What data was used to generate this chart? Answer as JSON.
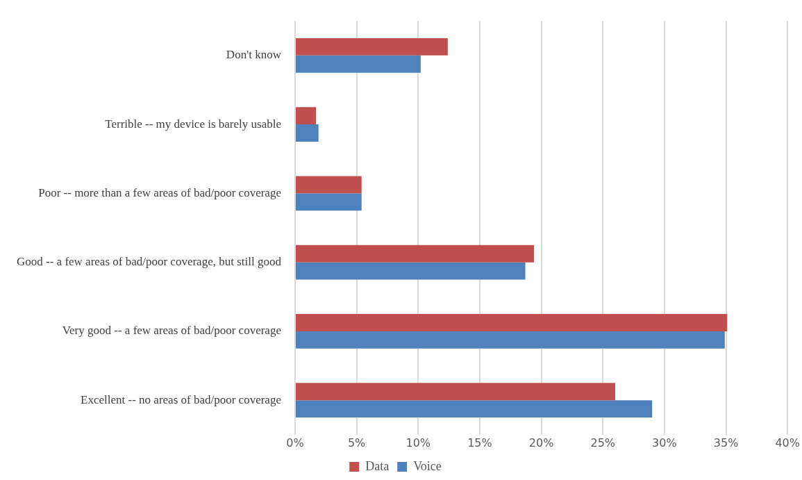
{
  "chart_data": {
    "type": "bar",
    "orientation": "horizontal",
    "categories": [
      "Don't know",
      "Terrible -- my device is barely usable",
      "Poor -- more than a few areas of bad/poor coverage",
      "Good -- a few areas of bad/poor coverage, but still good",
      "Very good -- a few areas of bad/poor coverage",
      "Excellent -- no areas of bad/poor coverage"
    ],
    "series": [
      {
        "name": "Data",
        "color": "#c0504d",
        "values": [
          12.4,
          1.7,
          5.4,
          19.4,
          35.1,
          26.0
        ]
      },
      {
        "name": "Voice",
        "color": "#4f81bd",
        "values": [
          10.2,
          1.9,
          5.4,
          18.7,
          34.9,
          29.0
        ]
      }
    ],
    "xlim": [
      0,
      40
    ],
    "xticks": [
      {
        "value": 0,
        "label": "0%"
      },
      {
        "value": 5,
        "label": "5%"
      },
      {
        "value": 10,
        "label": "10%"
      },
      {
        "value": 15,
        "label": "15%"
      },
      {
        "value": 20,
        "label": "20%"
      },
      {
        "value": 25,
        "label": "25%"
      },
      {
        "value": 30,
        "label": "30%"
      },
      {
        "value": 35,
        "label": "35%"
      },
      {
        "value": 40,
        "label": "40%"
      }
    ],
    "grid": "x",
    "legend": "bottom"
  }
}
